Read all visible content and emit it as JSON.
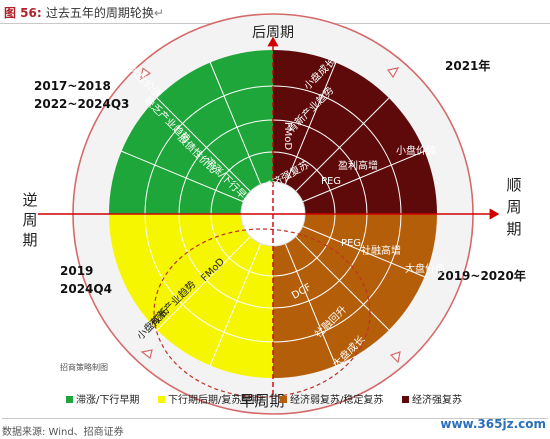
{
  "figure": {
    "label": "图 56:",
    "title": "过去五年的周期轮换",
    "return_mark": "↵"
  },
  "axes": {
    "top": "后周期",
    "bottom": "早周期",
    "left": [
      "逆",
      "周",
      "期"
    ],
    "right": [
      "顺",
      "周",
      "期"
    ]
  },
  "year_labels": {
    "q2_line1": "2017~2018",
    "q2_line2": "2022~2024Q3",
    "q1": "2021年",
    "q3_line1": "2019",
    "q3_line2": "2024Q4",
    "q4": "2019~2020年"
  },
  "colors": {
    "green": "#1ea63a",
    "maroon": "#5e0a0a",
    "yellow": "#f6f600",
    "orange": "#b55e0a",
    "outer_ring": "#f3f3f3",
    "arrow_red": "#e05050",
    "axis_red": "#d00000"
  },
  "quadrants": {
    "green": {
      "sectors": [
        "大盘价值",
        "缺乏产业趋势",
        "股债性价比",
        "滞涨/下行早期"
      ]
    },
    "maroon": {
      "sectors": [
        "盈利高增",
        "PEG",
        "有新产业趋势",
        "小盘成长",
        "小盘价值",
        "FMoD",
        "经济强复苏"
      ]
    },
    "yellow": {
      "sectors": [
        "FMoD",
        "有新产业趋势",
        "小盘成长"
      ]
    },
    "orange": {
      "sectors": [
        "PEG",
        "社融高增",
        "大盘价值",
        "DCF",
        "社融回升",
        "大盘成长"
      ]
    }
  },
  "note": "招商策略制图",
  "legend": [
    {
      "label": "滞涨/下行早期",
      "color": "#1ea63a"
    },
    {
      "label": "下行期后期/复苏早期",
      "color": "#f6f600"
    },
    {
      "label": "经济弱复苏/稳定复苏",
      "color": "#b55e0a"
    },
    {
      "label": "经济强复苏",
      "color": "#5e0a0a"
    }
  ],
  "source": "数据来源: Wind、招商证券",
  "watermark": "www.365jz.com"
}
